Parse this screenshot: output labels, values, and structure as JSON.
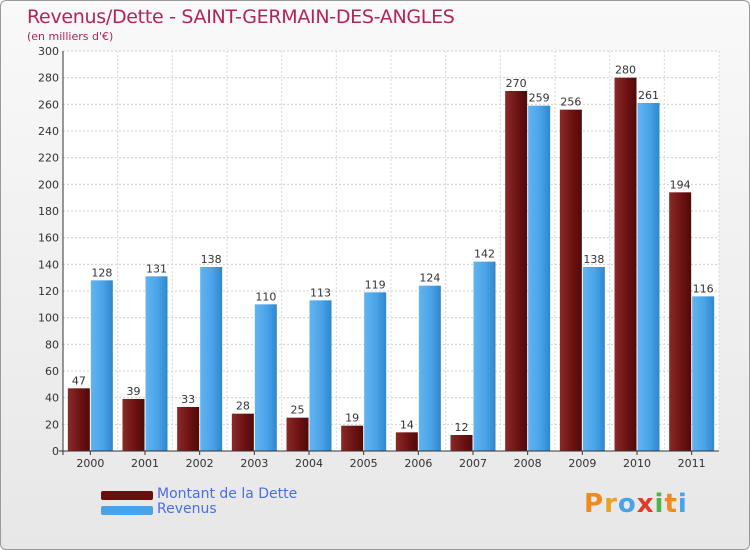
{
  "header": {
    "title": "Revenus/Dette - SAINT-GERMAIN-DES-ANGLES",
    "subtitle": "(en milliers d'€)"
  },
  "colors": {
    "title": "#b3245a",
    "dette": "#7a1616",
    "revenus": "#4aa3e8",
    "legend_text": "#4a6ee8"
  },
  "chart_data": {
    "type": "bar",
    "categories": [
      "2000",
      "2001",
      "2002",
      "2003",
      "2004",
      "2005",
      "2006",
      "2007",
      "2008",
      "2009",
      "2010",
      "2011"
    ],
    "series": [
      {
        "name": "Montant de la Dette",
        "values": [
          47,
          39,
          33,
          28,
          25,
          19,
          14,
          12,
          270,
          256,
          280,
          194
        ]
      },
      {
        "name": "Revenus",
        "values": [
          128,
          131,
          138,
          110,
          113,
          119,
          124,
          142,
          259,
          138,
          261,
          116
        ]
      }
    ],
    "ylim": [
      0,
      300
    ],
    "yticks": [
      0,
      20,
      40,
      60,
      80,
      100,
      120,
      140,
      160,
      180,
      200,
      220,
      240,
      260,
      280,
      300
    ],
    "grid": true,
    "legend": "bottom-left"
  },
  "legend": {
    "items": [
      {
        "label": "Montant de la Dette"
      },
      {
        "label": "Revenus"
      }
    ]
  },
  "logo": {
    "letters": [
      "P",
      "r",
      "o",
      "x",
      "i",
      "t",
      "i"
    ],
    "colors": [
      "#f08a1c",
      "#e8a321",
      "#4aa3e8",
      "#e23b2a",
      "#4fb24a",
      "#f08a1c",
      "#4aa3e8"
    ]
  }
}
